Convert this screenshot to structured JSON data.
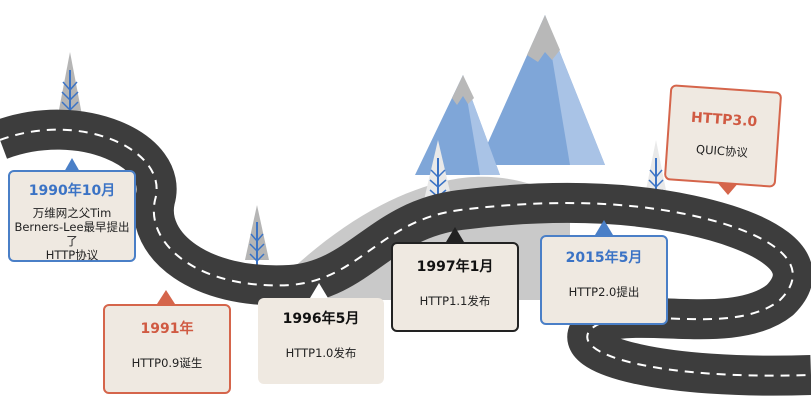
{
  "colors": {
    "road": "#3d3d3d",
    "road_mark": "#ffffff",
    "hill": "#c7c7c7",
    "mountain_blue": "#7fa6d8",
    "mountain_grey": "#b8b8b8",
    "accent_blue": "#3b73c5",
    "accent_red": "#d05a42",
    "card_bg": "#efe9e1"
  },
  "milestones": [
    {
      "year": "1990年10月",
      "lines": [
        "万维网之父Tim",
        "Berners-Lee最早提出了",
        "HTTP协议"
      ]
    },
    {
      "year": "1991年",
      "lines": [
        "HTTP0.9诞生"
      ]
    },
    {
      "year": "1996年5月",
      "lines": [
        "HTTP1.0发布"
      ]
    },
    {
      "year": "1997年1月",
      "lines": [
        "HTTP1.1发布"
      ]
    },
    {
      "year": "2015年5月",
      "lines": [
        "HTTP2.0提出"
      ]
    },
    {
      "year": "HTTP3.0",
      "lines": [
        "QUIC协议"
      ]
    }
  ]
}
